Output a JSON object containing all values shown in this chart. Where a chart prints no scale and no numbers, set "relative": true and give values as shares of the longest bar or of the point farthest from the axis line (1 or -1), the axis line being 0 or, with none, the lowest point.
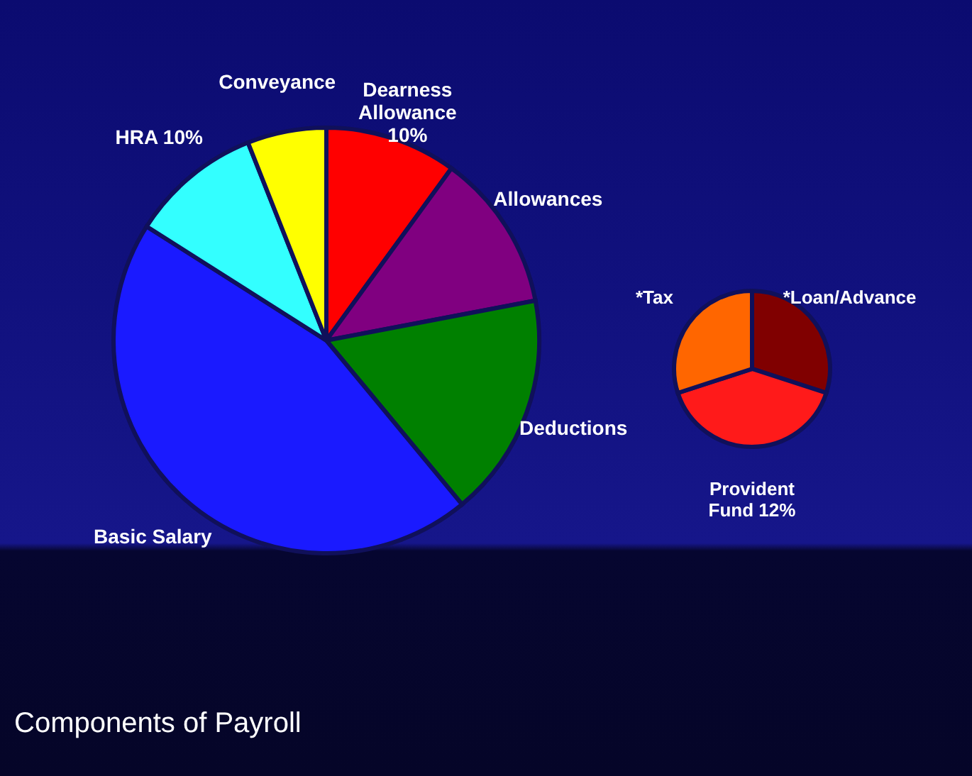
{
  "chart_data": [
    {
      "type": "pie",
      "title": "Components of Payroll",
      "relative": true,
      "categories": [
        "Dearness Allowance 10%",
        "Allowances",
        "Deductions",
        "Basic Salary",
        "HRA 10%",
        "Conveyance"
      ],
      "values": [
        10,
        12,
        17,
        45,
        10,
        6
      ],
      "colors": [
        "#ff0000",
        "#800080",
        "#008000",
        "#1a1aff",
        "#33ffff",
        "#ffff00"
      ]
    },
    {
      "type": "pie",
      "relative": true,
      "categories": [
        "*Loan/Advance",
        "Provident Fund 12%",
        "*Tax"
      ],
      "values": [
        30,
        40,
        30
      ],
      "colors": [
        "#800000",
        "#ff1a1a",
        "#ff6600"
      ]
    }
  ]
}
